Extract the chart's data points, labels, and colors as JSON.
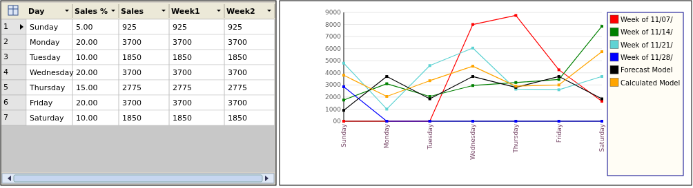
{
  "chart_data": [
    {
      "type": "heatmap",
      "xlabel": "Day",
      "categories": [
        "Sales %",
        "Sales",
        "Week1",
        "Week2"
      ],
      "y_categories": [
        "Sunday",
        "Monday",
        "Tuesday",
        "Wednesday",
        "Thursday",
        "Friday",
        "Saturday"
      ],
      "y2_categories": [
        "1",
        "2",
        "3",
        "4",
        "5",
        "6",
        "7"
      ],
      "cells": [
        [
          5,
          925,
          925,
          925
        ],
        [
          20,
          3700,
          3700,
          3700
        ],
        [
          10,
          1850,
          1850,
          1850
        ],
        [
          20,
          3700,
          3700,
          3700
        ],
        [
          15,
          2775,
          2775,
          2775
        ],
        [
          20,
          3700,
          3700,
          3700
        ],
        [
          10,
          1850,
          1850,
          1850
        ]
      ],
      "cell_labels": [
        [
          "5.00",
          "925",
          "925",
          "925"
        ],
        [
          "20.00",
          "3700",
          "3700",
          "3700"
        ],
        [
          "10.00",
          "1850",
          "1850",
          "1850"
        ],
        [
          "20.00",
          "3700",
          "3700",
          "3700"
        ],
        [
          "15.00",
          "2775",
          "2775",
          "2775"
        ],
        [
          "20.00",
          "3700",
          "3700",
          "3700"
        ],
        [
          "10.00",
          "1850",
          "1850",
          "1850"
        ]
      ]
    },
    {
      "type": "line",
      "categories": [
        "Sunday",
        "Monday",
        "Tuesday",
        "Wednesday",
        "Thursday",
        "Friday",
        "Saturday"
      ],
      "ylim": [
        0,
        9000
      ],
      "yticks": [
        {
          "value": 0,
          "label": "00"
        },
        1000,
        2000,
        3000,
        4000,
        5000,
        6000,
        7000,
        8000,
        9000
      ],
      "grid": "y",
      "legend": "right",
      "marker": "square",
      "line_style": "solid",
      "series": [
        {
          "name": "Week of 11/07/",
          "color": "#ff0000",
          "values": [
            0,
            0,
            0,
            8000,
            8750,
            4250,
            1650
          ]
        },
        {
          "name": "Week of 11/14/",
          "color": "#008000",
          "values": [
            1750,
            3100,
            2050,
            2950,
            3200,
            3450,
            7850
          ]
        },
        {
          "name": "Week of 11/21/",
          "color": "#5fd3d3",
          "values": [
            4800,
            1000,
            4600,
            6050,
            2650,
            2600,
            3700
          ]
        },
        {
          "name": "Week of 11/28/",
          "color": "#0000ff",
          "values": [
            2850,
            0,
            0,
            0,
            0,
            0,
            0
          ]
        },
        {
          "name": "Forecast Model",
          "color": "#000000",
          "values": [
            900,
            3700,
            1850,
            3700,
            2800,
            3700,
            1850
          ]
        },
        {
          "name": "Calculated Model",
          "color": "#ffa500",
          "values": [
            3800,
            2050,
            3350,
            4550,
            2900,
            3000,
            5750
          ]
        }
      ]
    }
  ]
}
